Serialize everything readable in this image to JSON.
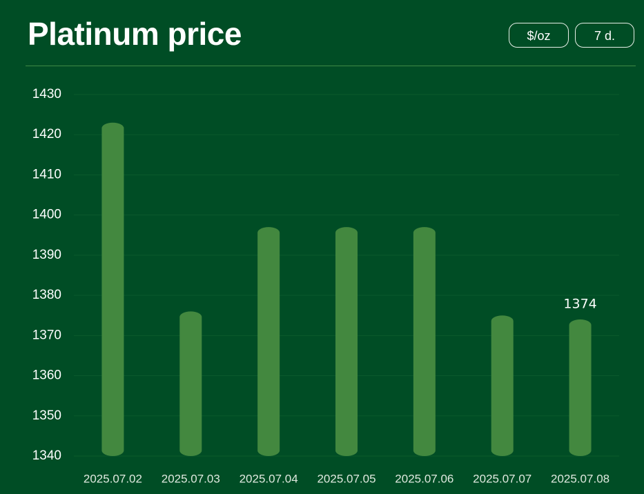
{
  "chart_data": {
    "type": "bar",
    "title": "Platinum price",
    "controls": [
      "$/oz",
      "7 d."
    ],
    "categories": [
      "2025.07.02",
      "2025.07.03",
      "2025.07.04",
      "2025.07.05",
      "2025.07.06",
      "2025.07.07",
      "2025.07.08"
    ],
    "values": [
      1423,
      1376,
      1397,
      1397,
      1397,
      1375,
      1374
    ],
    "color": "#43883f",
    "data_labels": "last",
    "ylim": [
      1340,
      1430
    ],
    "yticks": [
      1340,
      1350,
      1360,
      1370,
      1380,
      1390,
      1400,
      1410,
      1420,
      1430
    ],
    "grid": true
  }
}
